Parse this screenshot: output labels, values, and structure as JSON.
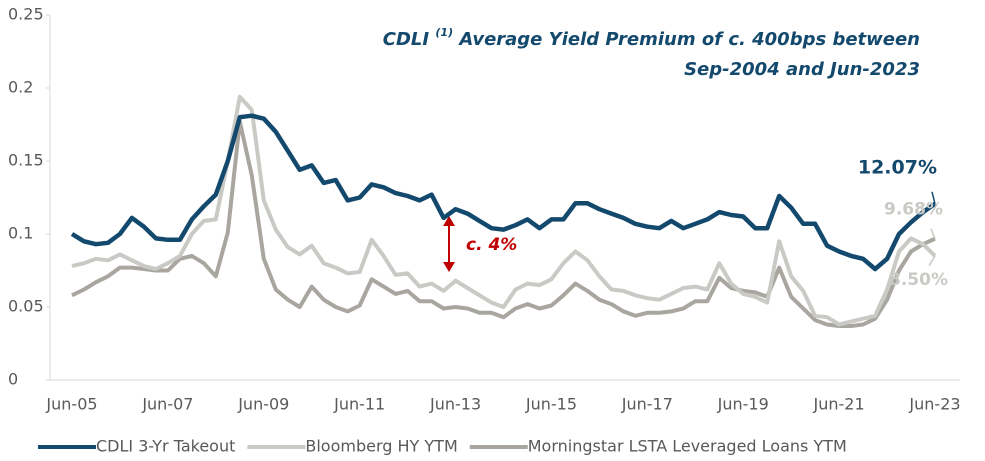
{
  "chart_data": {
    "type": "line",
    "title": {
      "lead": "CDLI",
      "note": "(1)",
      "rest": "Average Yield Premium of c. 400bps between",
      "line2": "Sep-2004 and Jun-2023"
    },
    "annotation": "c. 4%",
    "categories": [
      "Jun-05",
      null,
      null,
      null,
      null,
      null,
      null,
      null,
      "Jun-07",
      null,
      null,
      null,
      null,
      null,
      null,
      null,
      "Jun-09",
      null,
      null,
      null,
      null,
      null,
      null,
      null,
      "Jun-11",
      null,
      null,
      null,
      null,
      null,
      null,
      null,
      "Jun-13",
      null,
      null,
      null,
      null,
      null,
      null,
      null,
      "Jun-15",
      null,
      null,
      null,
      null,
      null,
      null,
      null,
      "Jun-17",
      null,
      null,
      null,
      null,
      null,
      null,
      null,
      "Jun-19",
      null,
      null,
      null,
      null,
      null,
      null,
      null,
      "Jun-21",
      null,
      null,
      null,
      null,
      null,
      null,
      null,
      "Jun-23"
    ],
    "ylim": [
      0,
      0.25
    ],
    "yticks": [
      0,
      0.05,
      0.1,
      0.15,
      0.2,
      0.25
    ],
    "grid": false,
    "legend": "bottom",
    "series": [
      {
        "name": "CDLI 3-Yr Takeout",
        "color": "#14496e",
        "values": [
          0.1,
          0.095,
          0.093,
          0.094,
          0.1,
          0.111,
          0.105,
          0.097,
          0.096,
          0.096,
          0.11,
          0.119,
          0.127,
          0.15,
          0.18,
          0.181,
          0.179,
          0.17,
          0.157,
          0.144,
          0.147,
          0.135,
          0.137,
          0.123,
          0.125,
          0.134,
          0.132,
          0.128,
          0.126,
          0.123,
          0.127,
          0.111,
          0.117,
          0.114,
          0.109,
          0.104,
          0.103,
          0.106,
          0.11,
          0.104,
          0.11,
          0.11,
          0.121,
          0.121,
          0.117,
          0.114,
          0.111,
          0.107,
          0.105,
          0.104,
          0.109,
          0.104,
          0.107,
          0.11,
          0.115,
          0.113,
          0.112,
          0.104,
          0.104,
          0.126,
          0.118,
          0.107,
          0.107,
          0.092,
          0.088,
          0.085,
          0.083,
          0.076,
          0.083,
          0.1,
          0.108,
          0.115,
          0.1207
        ],
        "value_labels": [
          null,
          null,
          null,
          null,
          null,
          null,
          null,
          null,
          null,
          null,
          null,
          null,
          null,
          null,
          null,
          null,
          null,
          null,
          null,
          null,
          null,
          null,
          null,
          null,
          null,
          null,
          null,
          null,
          null,
          null,
          null,
          null,
          null,
          null,
          null,
          null,
          null,
          null,
          null,
          null,
          null,
          null,
          null,
          null,
          null,
          null,
          null,
          null,
          null,
          null,
          null,
          null,
          null,
          null,
          null,
          null,
          null,
          null,
          null,
          null,
          null,
          null,
          null,
          null,
          null,
          null,
          null,
          null,
          null,
          null,
          null,
          null,
          "12.07%"
        ]
      },
      {
        "name": "Bloomberg HY YTM",
        "color": "#c9c9c5",
        "values": [
          0.078,
          0.08,
          0.083,
          0.082,
          0.086,
          0.082,
          0.078,
          0.076,
          0.08,
          0.085,
          0.1,
          0.109,
          0.11,
          0.15,
          0.194,
          0.185,
          0.123,
          0.103,
          0.091,
          0.086,
          0.092,
          0.08,
          0.077,
          0.073,
          0.074,
          0.096,
          0.085,
          0.072,
          0.073,
          0.064,
          0.066,
          0.061,
          0.068,
          0.063,
          0.058,
          0.053,
          0.05,
          0.062,
          0.066,
          0.065,
          0.069,
          0.08,
          0.088,
          0.082,
          0.071,
          0.062,
          0.061,
          0.058,
          0.056,
          0.055,
          0.059,
          0.063,
          0.064,
          0.062,
          0.08,
          0.066,
          0.059,
          0.057,
          0.053,
          0.095,
          0.071,
          0.061,
          0.044,
          0.043,
          0.038,
          0.04,
          0.042,
          0.044,
          0.062,
          0.088,
          0.097,
          0.093,
          0.085
        ],
        "value_labels": [
          null,
          null,
          null,
          null,
          null,
          null,
          null,
          null,
          null,
          null,
          null,
          null,
          null,
          null,
          null,
          null,
          null,
          null,
          null,
          null,
          null,
          null,
          null,
          null,
          null,
          null,
          null,
          null,
          null,
          null,
          null,
          null,
          null,
          null,
          null,
          null,
          null,
          null,
          null,
          null,
          null,
          null,
          null,
          null,
          null,
          null,
          null,
          null,
          null,
          null,
          null,
          null,
          null,
          null,
          null,
          null,
          null,
          null,
          null,
          null,
          null,
          null,
          null,
          null,
          null,
          null,
          null,
          null,
          null,
          null,
          null,
          null,
          "8.50%"
        ]
      },
      {
        "name": "Morningstar LSTA Leveraged Loans YTM",
        "color": "#a9a6a0",
        "values": [
          0.058,
          0.062,
          0.067,
          0.071,
          0.077,
          0.077,
          0.076,
          0.075,
          0.075,
          0.083,
          0.085,
          0.08,
          0.071,
          0.101,
          0.177,
          0.14,
          0.083,
          0.062,
          0.055,
          0.05,
          0.064,
          0.055,
          0.05,
          0.047,
          0.051,
          0.069,
          0.064,
          0.059,
          0.061,
          0.054,
          0.054,
          0.049,
          0.05,
          0.049,
          0.046,
          0.046,
          0.043,
          0.049,
          0.052,
          0.049,
          0.051,
          0.058,
          0.066,
          0.061,
          0.055,
          0.052,
          0.047,
          0.044,
          0.046,
          0.046,
          0.047,
          0.049,
          0.054,
          0.054,
          0.07,
          0.063,
          0.061,
          0.06,
          0.057,
          0.077,
          0.057,
          0.049,
          0.041,
          0.038,
          0.037,
          0.037,
          0.038,
          0.042,
          0.055,
          0.075,
          0.088,
          0.093,
          0.0968
        ],
        "value_labels": [
          null,
          null,
          null,
          null,
          null,
          null,
          null,
          null,
          null,
          null,
          null,
          null,
          null,
          null,
          null,
          null,
          null,
          null,
          null,
          null,
          null,
          null,
          null,
          null,
          null,
          null,
          null,
          null,
          null,
          null,
          null,
          null,
          null,
          null,
          null,
          null,
          null,
          null,
          null,
          null,
          null,
          null,
          null,
          null,
          null,
          null,
          null,
          null,
          null,
          null,
          null,
          null,
          null,
          null,
          null,
          null,
          null,
          null,
          null,
          null,
          null,
          null,
          null,
          null,
          null,
          null,
          null,
          null,
          null,
          null,
          null,
          null,
          "9.68%"
        ]
      }
    ]
  }
}
